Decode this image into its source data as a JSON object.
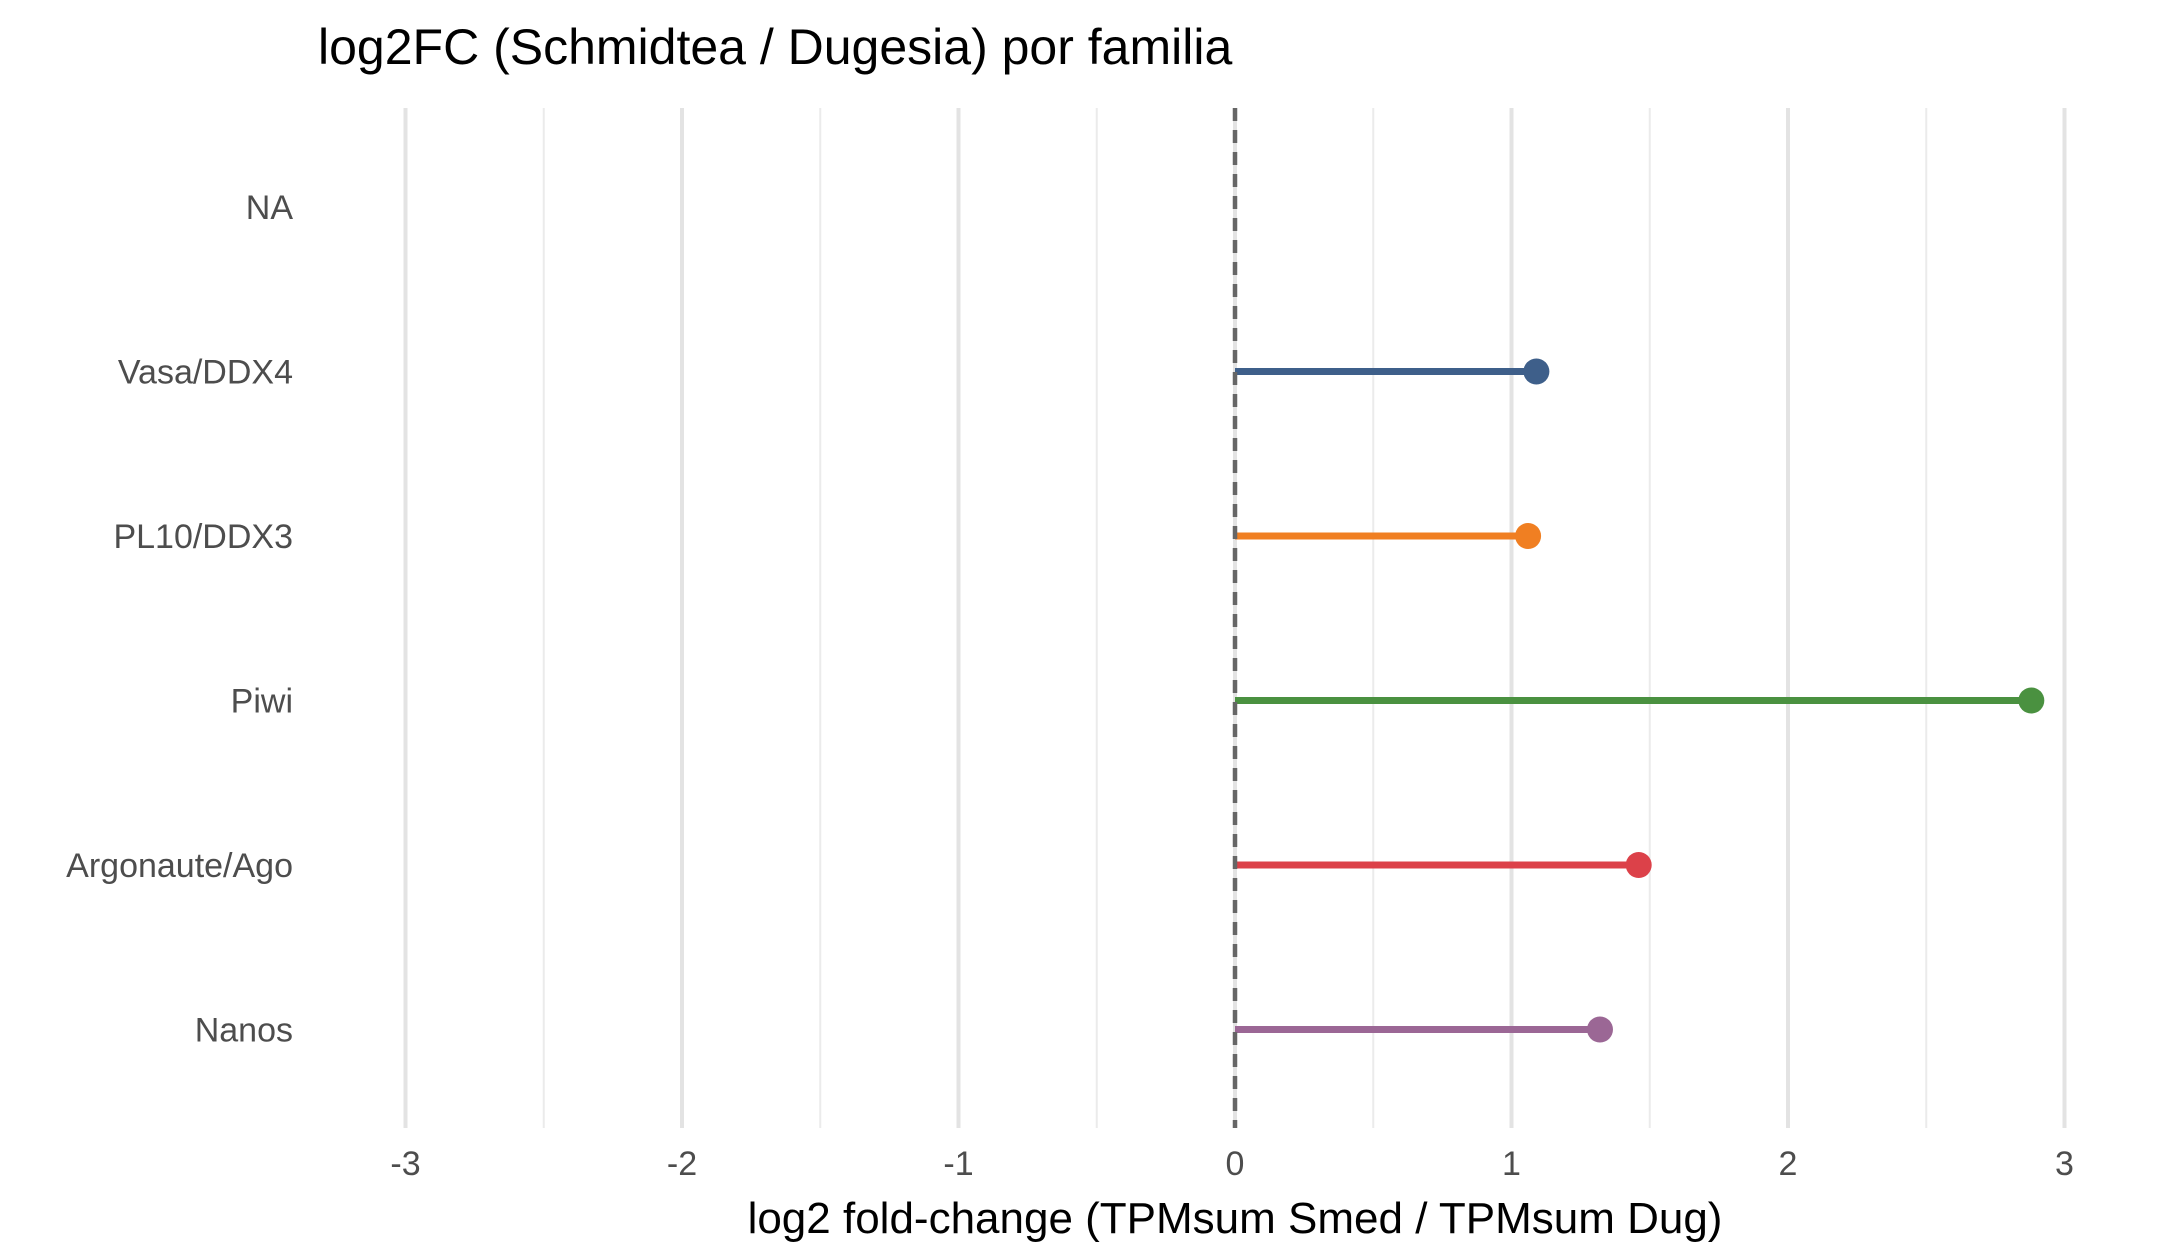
{
  "chart_data": {
    "type": "lollipop",
    "title": "log2FC (Schmidtea / Dugesia) por familia",
    "xlabel": "log2 fold-change (TPMsum Smed / TPMsum Dug)",
    "ylabel": "",
    "xlim": [
      -3.3,
      3.3
    ],
    "x_ticks": [
      -3,
      -2,
      -1,
      0,
      1,
      2,
      3
    ],
    "x_tick_labels": [
      "-3",
      "-2",
      "-1",
      "0",
      "1",
      "2",
      "3"
    ],
    "x_minor_ticks": [
      -2.5,
      -1.5,
      -0.5,
      0.5,
      1.5,
      2.5
    ],
    "grid": true,
    "reference_line": {
      "x": 0,
      "style": "dashed",
      "color": "#666666"
    },
    "categories": [
      "NA",
      "Vasa/DDX4",
      "PL10/DDX3",
      "Piwi",
      "Argonaute/Ago",
      "Nanos"
    ],
    "values": [
      null,
      1.09,
      1.06,
      2.88,
      1.46,
      1.32
    ],
    "colors": [
      null,
      "#3e5f8a",
      "#f07f22",
      "#4a9140",
      "#dc4149",
      "#9b6795"
    ]
  }
}
